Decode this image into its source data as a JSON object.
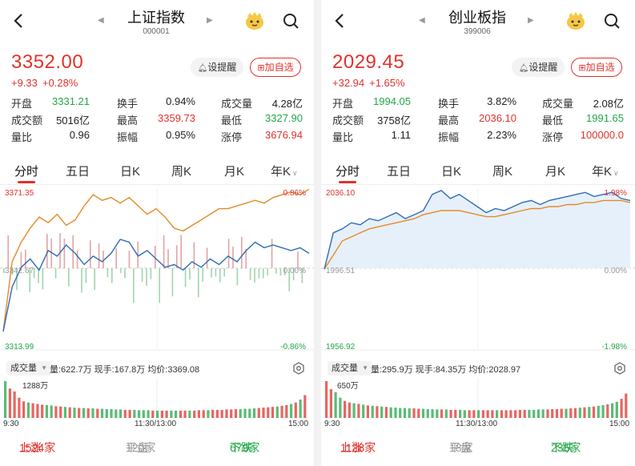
{
  "colors": {
    "up": "#e0322c",
    "down": "#22a64a",
    "index_line": "#2f6db3",
    "avg_line": "#e58a26",
    "flat": "#999999"
  },
  "common": {
    "back_icon": "chevron-left-icon",
    "remind_label": "设提醒",
    "fav_label": "加自选",
    "labels": {
      "open": "开盘",
      "turnover_rate": "换手",
      "volume": "成交量",
      "amount": "成交额",
      "high": "最高",
      "low": "最低",
      "volume_ratio": "量比",
      "amplitude": "振幅",
      "limit_up": "涨停"
    },
    "tabs": [
      "分时",
      "五日",
      "日K",
      "周K",
      "月K",
      "年K"
    ],
    "volume_chip": "成交量",
    "time_labels": [
      "9:30",
      "11:30/13:00",
      "15:00"
    ],
    "breadth_labels": {
      "up": "上涨",
      "flat": "平盘",
      "down": "下跌"
    }
  },
  "panels": [
    {
      "title": "上证指数",
      "code": "000001",
      "price": "3352.00",
      "change": "+9.33",
      "change_pct": "+0.28%",
      "stats": {
        "open": "3331.21",
        "turnover_rate": "0.94%",
        "volume": "4.28亿",
        "amount": "5016亿",
        "high": "3359.73",
        "low": "3327.90",
        "volume_ratio": "0.96",
        "amplitude": "0.95%",
        "limit_up": "3676.94"
      },
      "axis": {
        "top_price": "3371.35",
        "mid_price": "3342.67",
        "bottom_price": "3313.99",
        "top_pct": "0.86%",
        "mid_pct": "0.00%",
        "bottom_pct": "-0.86%"
      },
      "volume_info": {
        "vol": "量:622.7万",
        "now": "现手:167.8万",
        "avg": "均价:3369.08",
        "max": "1288万"
      },
      "breadth": {
        "up": "1524家",
        "flat": "120家",
        "down": "679家"
      },
      "chart_data": {
        "type": "line",
        "ylim": [
          3313.99,
          3371.35
        ],
        "series": [
          {
            "values": [
              3320,
              3336,
              3343,
              3346,
              3342,
              3349,
              3347,
              3351,
              3348,
              3344,
              3347,
              3345,
              3348,
              3353,
              3352,
              3347,
              3349,
              3346,
              3343,
              3344,
              3342,
              3345,
              3343,
              3346,
              3344,
              3347,
              3345,
              3349,
              3352,
              3350,
              3351,
              3350,
              3349,
              3350,
              3348
            ]
          },
          {
            "values": [
              3320,
              3345,
              3352,
              3357,
              3361,
              3359,
              3362,
              3358,
              3360,
              3365,
              3369,
              3367,
              3368,
              3366,
              3368,
              3365,
              3362,
              3364,
              3361,
              3357,
              3356,
              3358,
              3360,
              3362,
              3364,
              3364,
              3365,
              3366,
              3367,
              3366,
              3368,
              3369,
              3370,
              3369,
              3371
            ]
          }
        ]
      },
      "volume_chart": {
        "values": [
          100,
          80,
          72,
          55,
          45,
          42,
          40,
          38,
          36,
          35,
          34,
          32,
          31,
          30,
          29,
          28,
          27,
          27,
          26,
          26,
          25,
          25,
          24,
          24,
          23,
          23,
          22,
          22,
          22,
          21,
          21,
          21,
          20,
          20,
          20,
          20,
          20,
          20,
          20,
          20,
          20,
          20,
          21,
          21,
          21,
          22,
          22,
          22,
          23,
          23,
          24,
          24,
          25,
          25,
          26,
          27,
          28,
          29,
          30,
          31,
          33,
          35,
          38,
          42,
          50,
          62
        ]
      }
    },
    {
      "title": "创业板指",
      "code": "399006",
      "price": "2029.45",
      "change": "+32.94",
      "change_pct": "+1.65%",
      "stats": {
        "open": "1994.05",
        "turnover_rate": "3.82%",
        "volume": "2.08亿",
        "amount": "3758亿",
        "high": "2036.10",
        "low": "1991.65",
        "volume_ratio": "1.11",
        "amplitude": "2.23%",
        "limit_up": "100000.0"
      },
      "axis": {
        "top_price": "2036.10",
        "mid_price": "1996.51",
        "bottom_price": "1956.92",
        "top_pct": "1.98%",
        "mid_pct": "0.00%",
        "bottom_pct": "-1.98%"
      },
      "volume_info": {
        "vol": "量:295.9万",
        "now": "现手:84.35万",
        "avg": "均价:2028.97",
        "max": "650万"
      },
      "breadth": {
        "up": "1128家",
        "flat": "18家",
        "down": "235家"
      },
      "chart_data": {
        "type": "line",
        "ylim": [
          1956.92,
          2036.1
        ],
        "series": [
          {
            "values": [
              1996,
              2014,
              2016,
              2019,
              2018,
              2021,
              2020,
              2022,
              2024,
              2021,
              2023,
              2025,
              2033,
              2035,
              2031,
              2033,
              2030,
              2027,
              2024,
              2026,
              2025,
              2027,
              2029,
              2030,
              2028,
              2030,
              2031,
              2032,
              2033,
              2034,
              2032,
              2033,
              2034,
              2031,
              2030
            ]
          },
          {
            "values": [
              1996,
              2003,
              2010,
              2012,
              2014,
              2016,
              2017,
              2018,
              2019,
              2020,
              2021,
              2023,
              2024,
              2025,
              2025,
              2025,
              2024,
              2023,
              2022,
              2022,
              2023,
              2024,
              2025,
              2026,
              2026,
              2027,
              2027,
              2028,
              2028,
              2029,
              2029,
              2030,
              2030,
              2030,
              2029
            ]
          }
        ]
      },
      "volume_chart": {
        "values": [
          100,
          78,
          70,
          55,
          46,
          42,
          40,
          38,
          36,
          34,
          33,
          32,
          31,
          30,
          29,
          28,
          27,
          27,
          26,
          26,
          25,
          25,
          24,
          24,
          23,
          23,
          23,
          22,
          22,
          22,
          21,
          21,
          21,
          21,
          21,
          21,
          21,
          21,
          21,
          21,
          21,
          21,
          22,
          22,
          22,
          22,
          23,
          23,
          23,
          24,
          24,
          25,
          25,
          26,
          27,
          28,
          29,
          30,
          31,
          33,
          35,
          37,
          40,
          44,
          52,
          66
        ]
      }
    }
  ]
}
